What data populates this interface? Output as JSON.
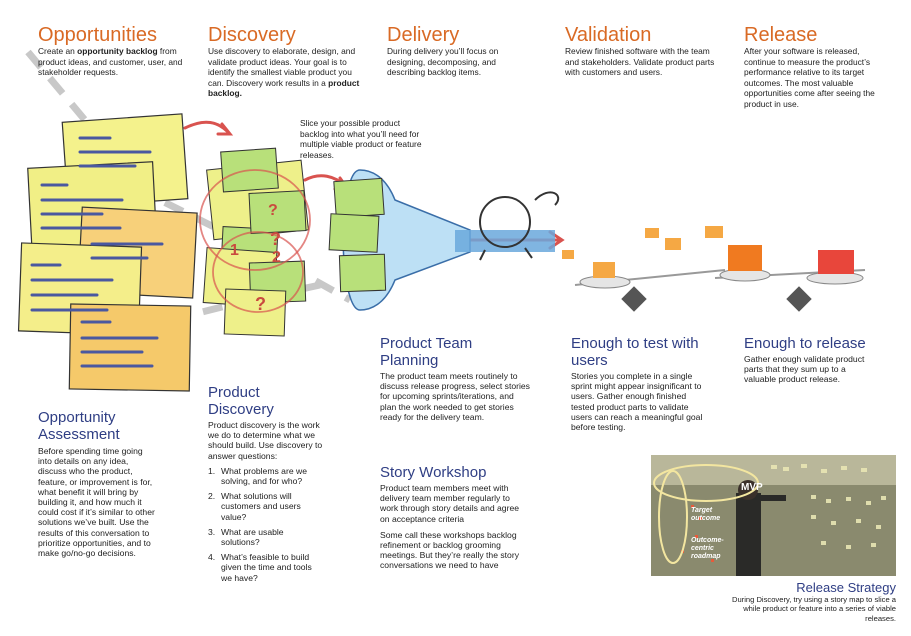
{
  "stages": [
    {
      "title": "Opportunities",
      "lines": [
        [
          "Create an ",
          ""
        ],
        [
          "opportunity backlog",
          "b"
        ],
        [
          " from product ideas, and customer, user, and stakeholder requests.",
          ""
        ]
      ]
    },
    {
      "title": "Discovery",
      "lines": [
        [
          "Use discovery to elaborate, design, and validate product ideas.  Your goal is to identify the smallest viable product you can.  Discovery work results in a ",
          ""
        ],
        [
          "product backlog.",
          "b"
        ]
      ]
    },
    {
      "title": "Delivery",
      "lines": [
        [
          "During delivery you’ll focus on designing, decomposing, and describing backlog items.",
          ""
        ]
      ]
    },
    {
      "title": "Validation",
      "lines": [
        [
          "Review finished software with the team and stakeholders.  Validate product parts with customers and users.",
          ""
        ]
      ]
    },
    {
      "title": "Release",
      "lines": [
        [
          "After your software is released, continue to measure the product’s performance relative to its target outcomes.  The most valuable opportunities come after seeing the product in use.",
          ""
        ]
      ]
    }
  ],
  "slice_note": "Slice your possible product backlog into what you’ll need for multiple viable product or feature releases.",
  "opportunity_assessment": {
    "title": "Opportunity Assessment",
    "body": "Before spending time going into details on any idea, discuss who the product, feature, or improvement is for, what benefit it will bring by building it, and how much it could cost if it’s similar to other solutions we’ve built.  Use the results of this conversation to prioritize opportunities, and to make go/no-go decisions."
  },
  "product_discovery": {
    "title": "Product Discovery",
    "body": "Product discovery is the work we do to determine what we should build. Use discovery to answer questions:",
    "questions": [
      {
        "n": "1.",
        "text": "What problems are we solving, and for who?"
      },
      {
        "n": "2.",
        "text": "What solutions will customers and users value?"
      },
      {
        "n": "3.",
        "text": "What are usable solutions?"
      },
      {
        "n": "4.",
        "text": "What’s feasible to build given the time and tools we have?"
      }
    ]
  },
  "team_planning": {
    "title": "Product Team Planning",
    "body": "The product team meets routinely to discuss release progress, select stories for upcoming sprints/iterations, and plan the work needed to get stories ready for the delivery team."
  },
  "story_workshop": {
    "title": "Story Workshop",
    "body1": "Product team members meet with delivery team member regularly to work through story details and agree on acceptance criteria",
    "body2": "Some call these workshops backlog refinement or backlog grooming meetings.  But they’re really the story conversations we need to have"
  },
  "enough_test": {
    "title": "Enough to test with users",
    "body": "Stories you complete in a single sprint might appear insignificant to users. Gather enough finished tested product parts to validate users can reach a meaningful goal before testing."
  },
  "enough_release": {
    "title": "Enough to release",
    "body": "Gather enough validate product parts that they sum up to a valuable product release."
  },
  "release_strategy": {
    "title": "Release Strategy",
    "body": "During Discovery, try using a story map to slice a while product or feature into a series of viable releases.",
    "photo_labels": {
      "mvp": "MVP",
      "target": "Target outcome",
      "roadmap": "Outcome-centric roadmap"
    }
  },
  "colors": {
    "stage_title": "#d96a25",
    "section_title": "#2f3e84",
    "note_yellow": "#f2f08a",
    "note_orange": "#f6c35a",
    "arrow_red": "#d9534f",
    "funnel_blue": "#6aa8dc",
    "photo_highlight": "#f3e6a0"
  }
}
